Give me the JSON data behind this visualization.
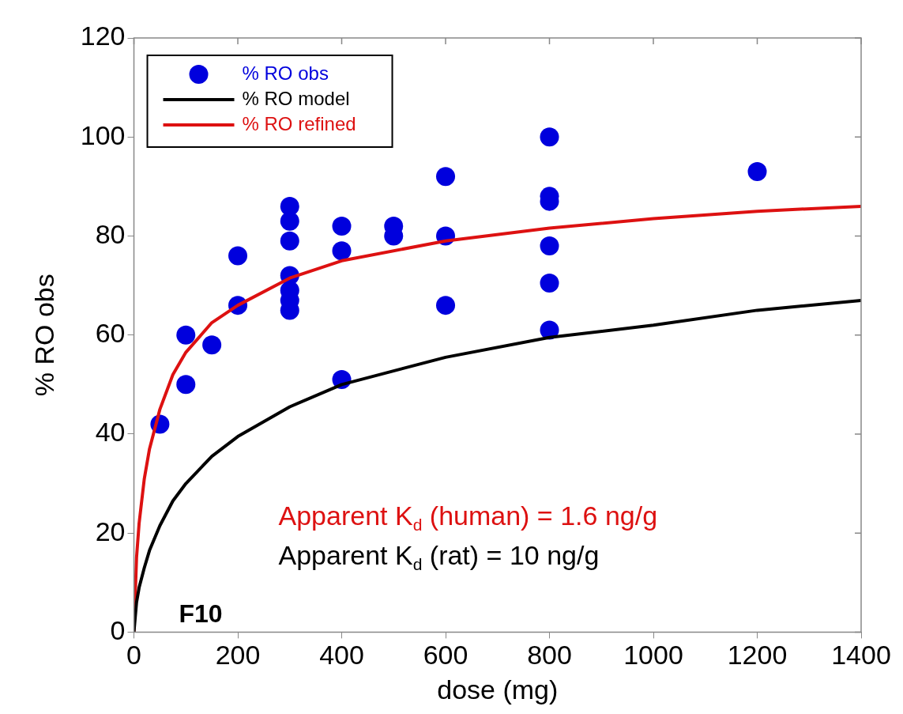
{
  "chart_data": {
    "type": "scatter",
    "xlabel": "dose (mg)",
    "ylabel": "% RO obs",
    "xlim": [
      0,
      1400
    ],
    "xticks": [
      0,
      200,
      400,
      600,
      800,
      1000,
      1200,
      1400
    ],
    "ylim": [
      0,
      120
    ],
    "yticks": [
      0,
      20,
      40,
      60,
      80,
      100,
      120
    ],
    "grid": false,
    "legend": "top left",
    "marker": "circle",
    "series": [
      {
        "name": "% RO obs",
        "color": "#0000dd",
        "x": [
          50,
          100,
          100,
          150,
          200,
          200,
          300,
          300,
          300,
          300,
          300,
          300,
          300,
          400,
          400,
          400,
          500,
          500,
          600,
          600,
          600,
          800,
          800,
          800,
          800,
          800,
          800,
          1200
        ],
        "values": [
          42,
          60,
          50,
          58,
          76,
          66,
          86,
          83,
          79,
          72,
          69,
          67,
          65,
          82,
          77,
          51,
          82,
          80,
          92,
          80,
          66,
          100,
          88,
          87,
          78,
          70.5,
          61,
          93
        ]
      },
      {
        "name": "% RO model",
        "type": "line",
        "color": "#000000",
        "marker": "none",
        "x": [
          0,
          5,
          10,
          20,
          30,
          50,
          75,
          100,
          150,
          200,
          300,
          400,
          600,
          800,
          1000,
          1200,
          1400
        ],
        "values": [
          0,
          6,
          9,
          13,
          16.5,
          21.5,
          26.5,
          30,
          35.5,
          39.5,
          45.5,
          50,
          55.5,
          59.5,
          62,
          65,
          67
        ]
      },
      {
        "name": "% RO refined",
        "type": "line",
        "color": "#dd1111",
        "marker": "none",
        "x": [
          0,
          5,
          10,
          20,
          30,
          50,
          75,
          100,
          150,
          200,
          300,
          400,
          600,
          800,
          1000,
          1200,
          1400
        ],
        "values": [
          0,
          15,
          22,
          31,
          37,
          45,
          52,
          56.5,
          62.5,
          66,
          71.5,
          75,
          79,
          81.6,
          83.5,
          85,
          86
        ]
      }
    ],
    "annotations": [
      "Apparent K$_{d}$ (human) = 1.6 ng/g",
      "Apparent K$_{d}$ (rat) = 10 ng/g",
      "F10"
    ]
  }
}
